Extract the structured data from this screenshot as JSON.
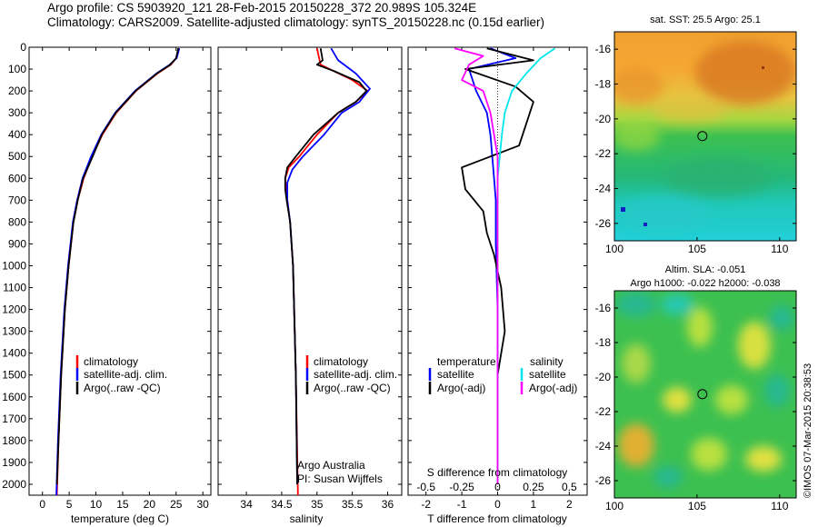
{
  "header": {
    "line1": "Argo profile: CS 5903920_121 28-Feb-2015 20150228_372 20.989S 105.324E",
    "line2": "Climatology: CARS2009. Satellite-adjusted climatology: synTS_20150228.nc (0.15d earlier)"
  },
  "colors": {
    "climatology": "#ff0000",
    "satellite": "#0000ff",
    "argo": "#000000",
    "sal_satellite": "#00e5ee",
    "sal_argo": "#ff00ff"
  },
  "chart_data": [
    {
      "type": "line",
      "id": "temperature",
      "xlabel": "temperature (deg C)",
      "ylabel": "",
      "xlim": [
        -2.5,
        31.5
      ],
      "ylim": [
        2050,
        0
      ],
      "xticks": [
        0,
        5,
        10,
        15,
        20,
        25,
        30
      ],
      "yticks": [
        0,
        100,
        200,
        300,
        400,
        500,
        600,
        700,
        800,
        900,
        1000,
        1100,
        1200,
        1300,
        1400,
        1500,
        1600,
        1700,
        1800,
        1900,
        2000
      ],
      "series": [
        {
          "name": "climatology",
          "color": "#ff0000",
          "depth": [
            5,
            50,
            80,
            120,
            200,
            300,
            400,
            500,
            600,
            700,
            800,
            1000,
            1200,
            1500,
            1800,
            2050
          ],
          "values": [
            25.5,
            25.0,
            24.0,
            21.5,
            17.5,
            13.8,
            11.2,
            9.3,
            7.7,
            6.6,
            5.8,
            4.9,
            4.2,
            3.5,
            3.0,
            2.7
          ]
        },
        {
          "name": "satellite-adj. clim.",
          "color": "#0000ff",
          "depth": [
            5,
            50,
            80,
            120,
            200,
            300,
            400,
            500,
            600,
            700,
            800,
            1000,
            1200,
            1500,
            1800,
            2050
          ],
          "values": [
            25.6,
            25.1,
            23.8,
            21.3,
            17.3,
            13.6,
            11.0,
            9.1,
            7.5,
            6.5,
            5.7,
            4.8,
            4.1,
            3.4,
            2.9,
            2.6
          ]
        },
        {
          "name": "Argo(..raw -QC)",
          "color": "#000000",
          "depth": [
            5,
            50,
            80,
            120,
            200,
            300,
            400,
            500,
            600,
            700,
            800,
            1000,
            1200,
            1500,
            1800,
            2000
          ],
          "values": [
            25.4,
            25.0,
            23.9,
            21.4,
            17.4,
            13.7,
            11.1,
            9.4,
            7.6,
            6.6,
            5.8,
            4.9,
            4.2,
            3.5,
            3.0,
            2.7
          ]
        }
      ],
      "legend": [
        "climatology",
        "satellite-adj. clim.",
        "Argo(..raw -QC)"
      ]
    },
    {
      "type": "line",
      "id": "salinity",
      "xlabel": "salinity",
      "xlim": [
        33.6,
        36.2
      ],
      "ylim": [
        2050,
        0
      ],
      "xticks": [
        34,
        34.5,
        35,
        35.5,
        36
      ],
      "xticklabels": [
        "34",
        "34.5",
        "35",
        "35.5",
        "36"
      ],
      "series": [
        {
          "name": "climatology",
          "color": "#ff0000",
          "depth": [
            5,
            80,
            150,
            200,
            250,
            300,
            400,
            500,
            550,
            600,
            700,
            800,
            1000,
            1500,
            2050
          ],
          "values": [
            35.0,
            35.05,
            35.5,
            35.72,
            35.55,
            35.3,
            35.0,
            34.75,
            34.6,
            34.55,
            34.58,
            34.62,
            34.66,
            34.7,
            34.73
          ]
        },
        {
          "name": "satellite-adj. clim.",
          "color": "#0000ff",
          "depth": [
            5,
            60,
            120,
            190,
            250,
            300,
            400,
            500,
            560,
            620,
            700,
            800,
            1000,
            1500,
            2000
          ],
          "values": [
            35.2,
            35.3,
            35.55,
            35.75,
            35.6,
            35.35,
            35.1,
            34.8,
            34.65,
            34.58,
            34.58,
            34.62,
            34.66,
            34.7,
            34.72
          ]
        },
        {
          "name": "Argo(..raw -QC)",
          "color": "#000000",
          "depth": [
            5,
            60,
            80,
            110,
            160,
            200,
            250,
            300,
            400,
            500,
            550,
            600,
            650,
            700,
            800,
            1000,
            1500,
            2000
          ],
          "values": [
            35.05,
            35.08,
            35.0,
            35.25,
            35.6,
            35.7,
            35.55,
            35.3,
            34.95,
            34.7,
            34.58,
            34.55,
            34.55,
            34.57,
            34.62,
            34.66,
            34.7,
            34.72
          ]
        }
      ],
      "legend": [
        "climatology",
        "satellite-adj. clim.",
        "Argo(..raw -QC)"
      ],
      "annotations": [
        "Argo Australia",
        "PI: Susan Wijffels"
      ]
    },
    {
      "type": "line",
      "id": "difference",
      "xlabel": "T difference from climatology",
      "x2label": "S difference from climatology",
      "xlim": [
        -2.5,
        2.5
      ],
      "ylim": [
        2050,
        0
      ],
      "xticks": [
        -2,
        -1,
        0,
        1,
        2
      ],
      "xticklabels": [
        "-2",
        "-1",
        "0",
        "1",
        "2"
      ],
      "x2ticks": [
        -0.5,
        -0.25,
        0,
        0.25,
        0.5
      ],
      "x2ticklabels": [
        "-0.5",
        "-0.25",
        "0",
        "0.25",
        "0.5"
      ],
      "series": [
        {
          "name": "temperature satellite",
          "color": "#0000ff",
          "depth": [
            5,
            50,
            100,
            200,
            300,
            400,
            500,
            600,
            700,
            900,
            1200,
            1500,
            2000
          ],
          "values": [
            -0.2,
            0.5,
            -0.8,
            -0.6,
            -0.3,
            -0.2,
            -0.15,
            -0.1,
            -0.05,
            -0.05,
            0,
            0,
            0
          ]
        },
        {
          "name": "temperature Argo(-adj)",
          "color": "#000000",
          "depth": [
            5,
            60,
            100,
            180,
            250,
            350,
            450,
            550,
            650,
            750,
            850,
            950,
            1100,
            1300,
            1500,
            2000
          ],
          "values": [
            -0.3,
            1.0,
            -0.9,
            0.5,
            1.0,
            0.8,
            0.6,
            -1.0,
            -0.9,
            -0.4,
            -0.3,
            -0.1,
            0.1,
            0.2,
            0,
            0
          ]
        },
        {
          "name": "salinity satellite",
          "color": "#00e5ee",
          "depth": [
            5,
            50,
            120,
            200,
            300,
            400,
            600,
            800,
            1000,
            1500,
            2000
          ],
          "values": [
            0.4,
            0.3,
            0.2,
            0.1,
            0.05,
            0.03,
            0.0,
            0.0,
            0.0,
            0.0,
            0.0
          ]
        },
        {
          "name": "salinity Argo(-adj)",
          "color": "#ff00ff",
          "depth": [
            5,
            40,
            80,
            150,
            200,
            300,
            500,
            700,
            1000,
            2000
          ],
          "values": [
            -0.3,
            -0.1,
            -0.2,
            -0.25,
            -0.1,
            -0.05,
            0,
            0,
            0,
            0
          ]
        }
      ],
      "legend_headers": [
        "temperature",
        "salinity"
      ],
      "legend_temp": [
        "satellite",
        "Argo(-adj)"
      ],
      "legend_sal": [
        "satellite",
        "Argo(-adj)"
      ]
    },
    {
      "type": "heatmap",
      "id": "sst_map",
      "title": "sat. SST: 25.5  Argo: 25.1",
      "xlim": [
        100,
        111
      ],
      "ylim": [
        -27,
        -15
      ],
      "xticks": [
        100,
        105,
        110
      ],
      "yticks": [
        -16,
        -18,
        -20,
        -22,
        -24,
        -26
      ],
      "marker": [
        105.324,
        -20.989
      ]
    },
    {
      "type": "heatmap",
      "id": "sla_map",
      "title_line1": "Altim. SLA: -0.051",
      "title_line2": "Argo h1000: -0.022 h2000: -0.038",
      "xlim": [
        100,
        111
      ],
      "ylim": [
        -27,
        -15
      ],
      "xticks": [
        100,
        105,
        110
      ],
      "yticks": [
        -16,
        -18,
        -20,
        -22,
        -24,
        -26
      ],
      "marker": [
        105.324,
        -20.989
      ]
    }
  ],
  "credit": "©IMOS 07-Mar-2015 20:38:53"
}
